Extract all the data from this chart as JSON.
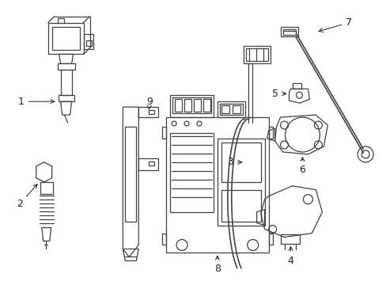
{
  "bg_color": "#ffffff",
  "line_color": "#404040",
  "label_color": "#222222",
  "label_fontsize": 9,
  "figsize": [
    4.89,
    3.6
  ],
  "dpi": 100
}
